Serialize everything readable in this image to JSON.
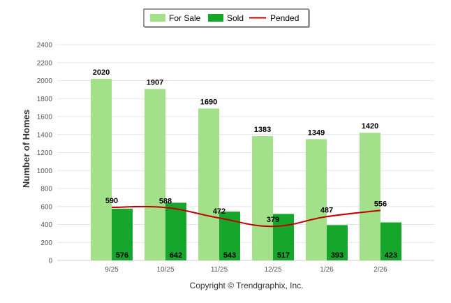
{
  "chart_data": {
    "type": "bar",
    "title": "",
    "ylabel": "Number of Homes",
    "xlabel": "",
    "ylim": [
      0,
      2400
    ],
    "yticks": [
      0,
      200,
      400,
      600,
      800,
      1000,
      1200,
      1400,
      1600,
      1800,
      2000,
      2200,
      2400
    ],
    "categories": [
      "9/25",
      "10/25",
      "11/25",
      "12/25",
      "1/26",
      "2/26"
    ],
    "series": [
      {
        "name": "For Sale",
        "type": "bar",
        "color": "#a3e08a",
        "values": [
          2020,
          1907,
          1690,
          1383,
          1349,
          1420
        ]
      },
      {
        "name": "Sold",
        "type": "bar",
        "color": "#17a62c",
        "values": [
          576,
          642,
          543,
          517,
          393,
          423
        ]
      },
      {
        "name": "Pended",
        "type": "line",
        "color": "#c00000",
        "values": [
          590,
          588,
          472,
          379,
          487,
          556
        ]
      }
    ],
    "legend": "top-center",
    "grid": true
  },
  "credit": "Copyright © Trendgraphix, Inc."
}
